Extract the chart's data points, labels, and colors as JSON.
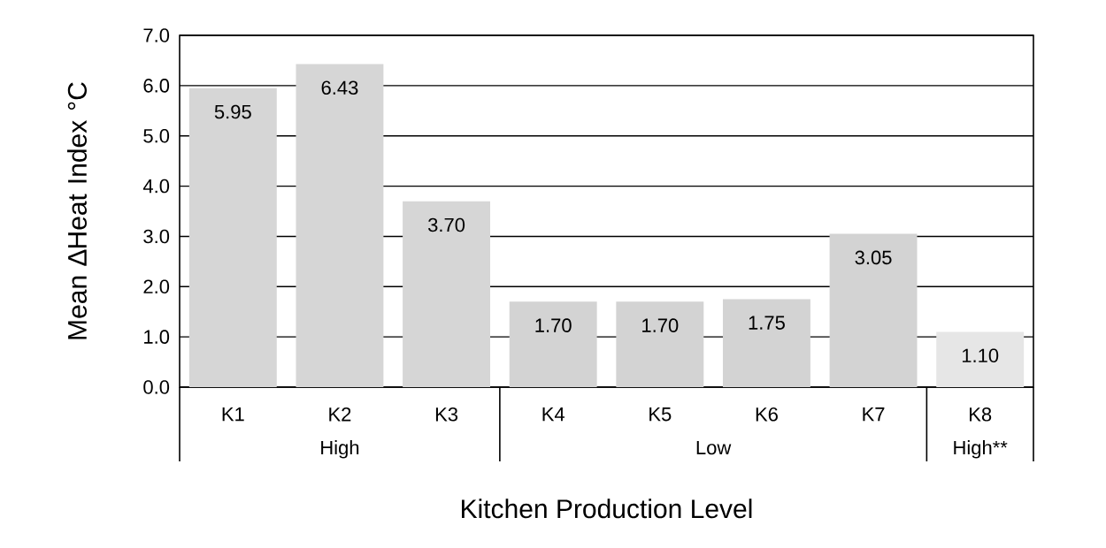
{
  "chart_data": {
    "type": "bar",
    "xlabel": "Kitchen Production Level",
    "ylabel": "Mean ∆Heat Index °C",
    "categories": [
      "K1",
      "K2",
      "K3",
      "K4",
      "K5",
      "K6",
      "K7",
      "K8"
    ],
    "values": [
      5.95,
      6.43,
      3.7,
      1.7,
      1.7,
      1.75,
      3.05,
      1.1
    ],
    "value_labels": [
      "5.95",
      "6.43",
      "3.70",
      "1.70",
      "1.70",
      "1.75",
      "3.05",
      "1.10"
    ],
    "colors": [
      "#d6d6d6",
      "#d6d6d6",
      "#d6d6d6",
      "#d3d3d3",
      "#d3d3d3",
      "#d3d3d3",
      "#d3d3d3",
      "#e6e6e6"
    ],
    "annotations": [
      "High",
      "Low",
      "High**"
    ],
    "ylim": [
      0,
      7
    ],
    "yticks": [
      {
        "value": 0,
        "label": "0.0"
      },
      {
        "value": 1,
        "label": "1.0"
      },
      {
        "value": 2,
        "label": "2.0"
      },
      {
        "value": 3,
        "label": "3.0"
      },
      {
        "value": 4,
        "label": "4.0"
      },
      {
        "value": 5,
        "label": "5.0"
      },
      {
        "value": 6,
        "label": "6.0"
      },
      {
        "value": 7,
        "label": "7.0"
      }
    ],
    "grid": "y"
  }
}
